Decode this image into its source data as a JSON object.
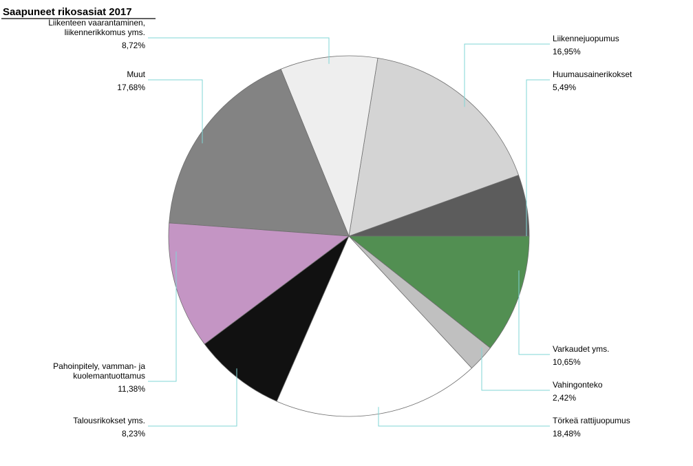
{
  "chart_data": {
    "type": "pie",
    "title": "Saapuneet rikosasiat  2017",
    "slices": [
      {
        "label": [
          "Huumausainerikokset"
        ],
        "value": 5.49,
        "display": "5,49%",
        "color": "#5c5c5c"
      },
      {
        "label": [
          "Liikennejuopumus"
        ],
        "value": 16.95,
        "display": "16,95%",
        "color": "#d4d4d4"
      },
      {
        "label": [
          "Liikenteen vaarantaminen,",
          "liikennerikkomus yms."
        ],
        "value": 8.72,
        "display": "8,72%",
        "color": "#eeeeee"
      },
      {
        "label": [
          "Muut"
        ],
        "value": 17.68,
        "display": "17,68%",
        "color": "#838383"
      },
      {
        "label": [
          "Pahoinpitely, vamman- ja",
          "kuolemantuottamus"
        ],
        "value": 11.38,
        "display": "11,38%",
        "color": "#c495c4"
      },
      {
        "label": [
          "Talousrikokset yms."
        ],
        "value": 8.23,
        "display": "8,23%",
        "color": "#111111"
      },
      {
        "label": [
          "Törkeä rattijuopumus"
        ],
        "value": 18.48,
        "display": "18,48%",
        "color": "#ffffff"
      },
      {
        "label": [
          "Vahingonteko"
        ],
        "value": 2.42,
        "display": "2,42%",
        "color": "#c0c0c0"
      },
      {
        "label": [
          "Varkaudet yms."
        ],
        "value": 10.65,
        "display": "10,65%",
        "color": "#528f52"
      }
    ]
  }
}
